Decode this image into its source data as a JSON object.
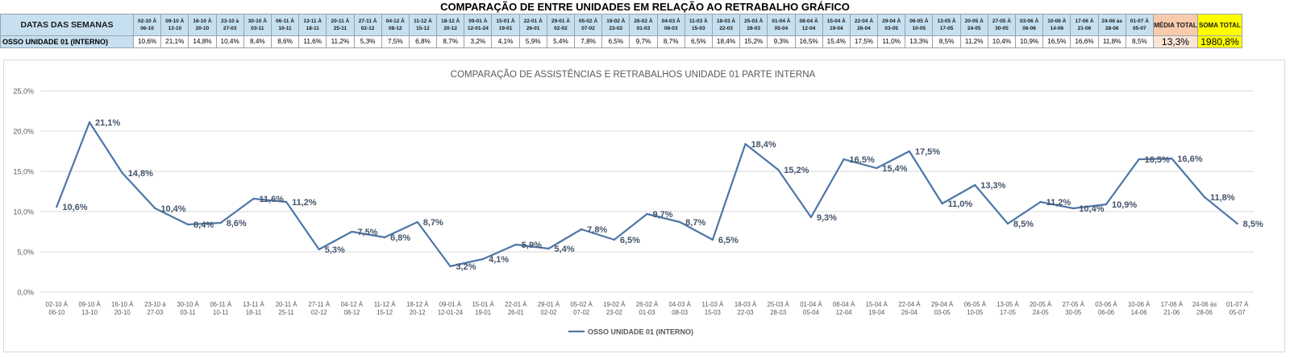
{
  "page": {
    "title": "COMPARAÇÃO DE ENTRE UNIDADES EM RELAÇÃO AO RETRABALHO GRÁFICO"
  },
  "table": {
    "header_label": "DATAS DAS SEMANAS",
    "row_label": "OSSO UNIDADE 01 (INTERNO)",
    "media_label": "MÉDIA TOTAL",
    "soma_label": "SOMA TOTAL",
    "media_value": "13,3%",
    "soma_value": "1980,8%",
    "weeks": [
      "02-10 À 06-10",
      "09-10 À 13-10",
      "16-10 À 20-10",
      "23-10 à 27-03",
      "30-10 À 03-11",
      "06-11 À 10-11",
      "13-11 À 18-11",
      "20-11 À 25-11",
      "27-11 À 02-12",
      "04-12 À 08-12",
      "11-12 À 15-12",
      "18-12 À 20-12",
      "09-01 À 12-01-24",
      "15-01 À 19-01",
      "22-01 À 26-01",
      "29-01 À 02-02",
      "05-02 À 07-02",
      "19-02 À 23-02",
      "26-02 À 01-03",
      "04-03 À 08-03",
      "11-03 À 15-03",
      "18-03 À 22-03",
      "25-03 À 28-03",
      "01-04 À 05-04",
      "08-04 À 12-04",
      "15-04 À 19-04",
      "22-04 À 26-04",
      "29-04 À 03-05",
      "06-05 À 10-05",
      "13-05 À 17-05",
      "20-05 À 24-05",
      "27-05 À 30-05",
      "03-06 À 06-06",
      "10-06 À 14-06",
      "17-06 À 21-06",
      "24-06 às 28-06",
      "01-07 À 05-07"
    ],
    "values": [
      "10,6%",
      "21,1%",
      "14,8%",
      "10,4%",
      "8,4%",
      "8,6%",
      "11,6%",
      "11,2%",
      "5,3%",
      "7,5%",
      "6,8%",
      "8,7%",
      "3,2%",
      "4,1%",
      "5,9%",
      "5,4%",
      "7,8%",
      "6,5%",
      "9,7%",
      "8,7%",
      "6,5%",
      "18,4%",
      "15,2%",
      "9,3%",
      "16,5%",
      "15,4%",
      "17,5%",
      "11,0%",
      "13,3%",
      "8,5%",
      "11,2%",
      "10,4%",
      "10,9%",
      "16,5%",
      "16,6%",
      "11,8%",
      "8,5%"
    ]
  },
  "chart_data": {
    "type": "line",
    "title": "COMPARAÇÃO DE ASSISTÊNCIAS E RETRABALHOS UNIDADE 01 PARTE INTERNA",
    "categories": [
      [
        "02-10 À",
        "06-10"
      ],
      [
        "09-10 À",
        "13-10"
      ],
      [
        "16-10 À",
        "20-10"
      ],
      [
        "23-10 à",
        "27-03"
      ],
      [
        "30-10 À",
        "03-11"
      ],
      [
        "06-11 À",
        "10-11"
      ],
      [
        "13-11 À",
        "18-11"
      ],
      [
        "20-11 À",
        "25-11"
      ],
      [
        "27-11 À",
        "02-12"
      ],
      [
        "04-12 À",
        "08-12"
      ],
      [
        "11-12 À",
        "15-12"
      ],
      [
        "18-12 À",
        "20-12"
      ],
      [
        "09-01 À",
        "12-01-24"
      ],
      [
        "15-01 À",
        "19-01"
      ],
      [
        "22-01 À",
        "26-01"
      ],
      [
        "29-01 À",
        "02-02"
      ],
      [
        "05-02 À",
        "07-02"
      ],
      [
        "19-02 À",
        "23-02"
      ],
      [
        "26-02 À",
        "01-03"
      ],
      [
        "04-03 À",
        "08-03"
      ],
      [
        "11-03 À",
        "15-03"
      ],
      [
        "18-03 À",
        "22-03"
      ],
      [
        "25-03 À",
        "28-03"
      ],
      [
        "01-04 À",
        "05-04"
      ],
      [
        "08-04 À",
        "12-04"
      ],
      [
        "15-04 À",
        "19-04"
      ],
      [
        "22-04 À",
        "26-04"
      ],
      [
        "29-04 À",
        "03-05"
      ],
      [
        "06-05 À",
        "10-05"
      ],
      [
        "13-05 À",
        "17-05"
      ],
      [
        "20-05 À",
        "24-05"
      ],
      [
        "27-05 À",
        "30-05"
      ],
      [
        "03-06 À",
        "06-06"
      ],
      [
        "10-06 À",
        "14-06"
      ],
      [
        "17-06 À",
        "21-06"
      ],
      [
        "24-06 às",
        "28-06"
      ],
      [
        "01-07 À",
        "05-07"
      ]
    ],
    "series": [
      {
        "name": "OSSO UNIDADE 01 (INTERNO)",
        "values": [
          10.6,
          21.1,
          14.8,
          10.4,
          8.4,
          8.6,
          11.6,
          11.2,
          5.3,
          7.5,
          6.8,
          8.7,
          3.2,
          4.1,
          5.9,
          5.4,
          7.8,
          6.5,
          9.7,
          8.7,
          6.5,
          18.4,
          15.2,
          9.3,
          16.5,
          15.4,
          17.5,
          11.0,
          13.3,
          8.5,
          11.2,
          10.4,
          10.9,
          16.5,
          16.6,
          11.8,
          8.5
        ],
        "labels": [
          "10,6%",
          "21,1%",
          "14,8%",
          "10,4%",
          "8,4%",
          "8,6%",
          "11,6%",
          "11,2%",
          "5,3%",
          "7,5%",
          "6,8%",
          "8,7%",
          "3,2%",
          "4,1%",
          "5,9%",
          "5,4%",
          "7,8%",
          "6,5%",
          "9,7%",
          "8,7%",
          "6,5%",
          "18,4%",
          "15,2%",
          "9,3%",
          "16,5%",
          "15,4%",
          "17,5%",
          "11,0%",
          "13,3%",
          "8,5%",
          "11,2%",
          "10,4%",
          "10,9%",
          "16,5%",
          "16,6%",
          "11,8%",
          "8,5%"
        ],
        "color": "#4e76a6"
      }
    ],
    "ylim": [
      0,
      25
    ],
    "yticks": [
      "0,0%",
      "5,0%",
      "10,0%",
      "15,0%",
      "20,0%",
      "25,0%"
    ],
    "grid": true,
    "legend": "bottom"
  }
}
